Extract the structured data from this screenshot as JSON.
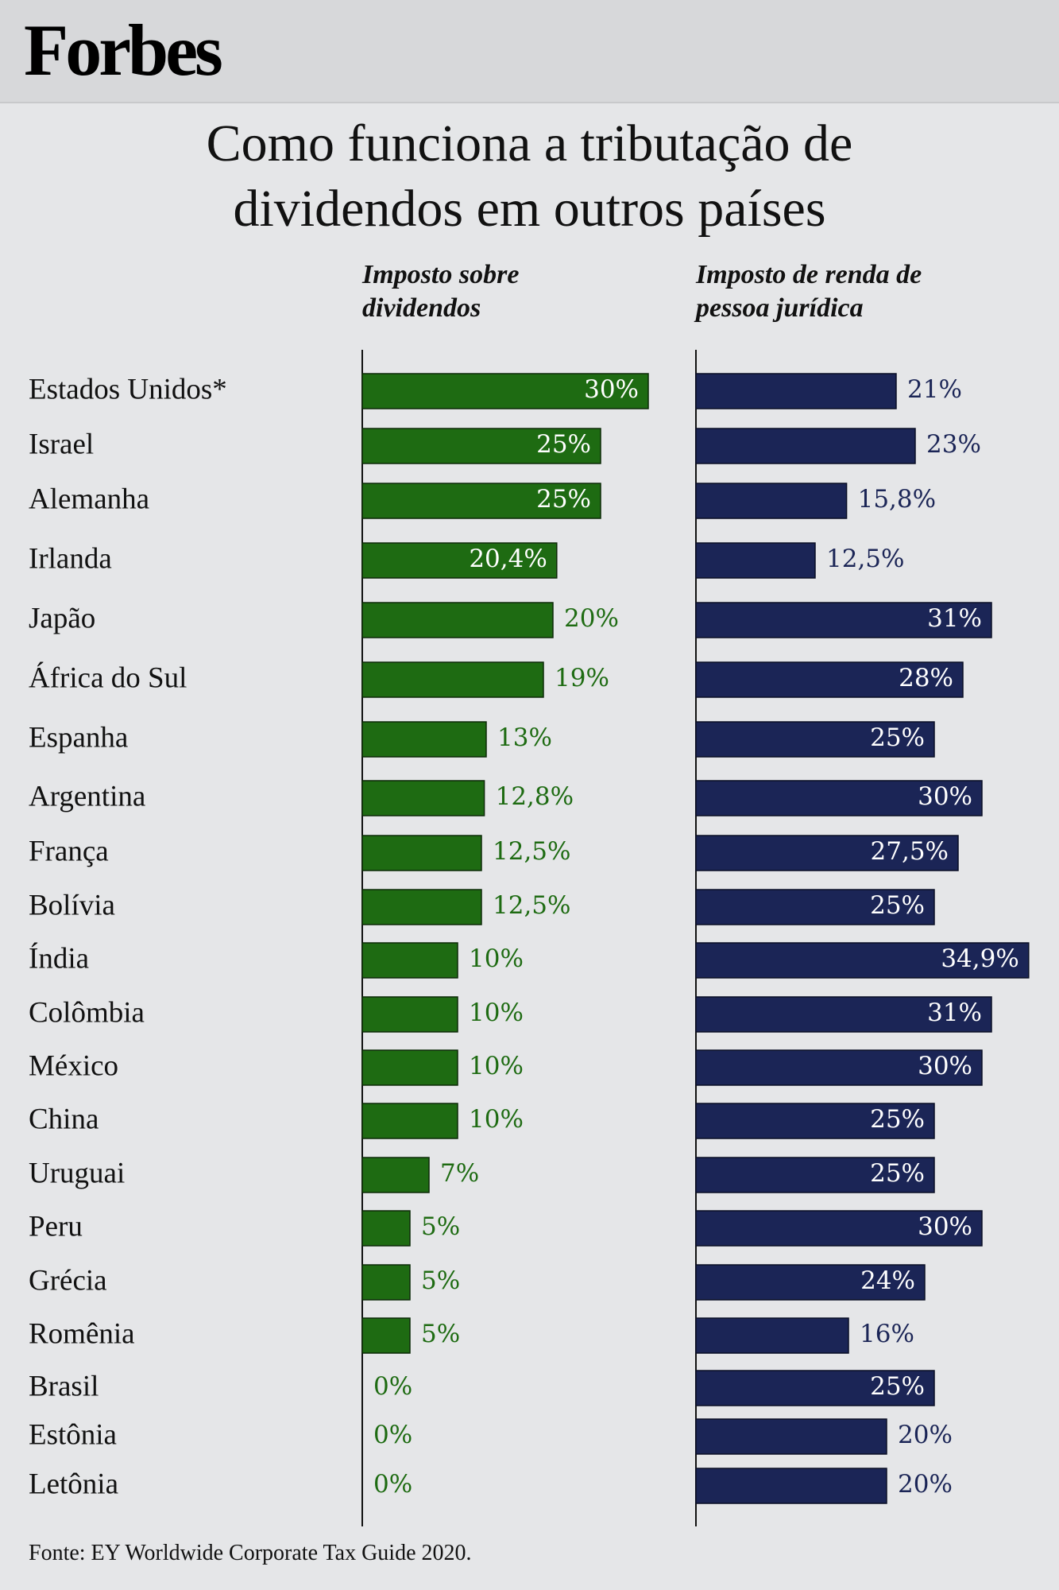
{
  "brand": "Forbes",
  "title_line1": "Como funciona a tributação de",
  "title_line2": "dividendos em outros países",
  "source": "Fonte: EY Worldwide Corporate Tax Guide 2020.",
  "colors": {
    "dividend": "#1e6b12",
    "corporate": "#1b2556",
    "dividend_text": "#1e6b12",
    "corporate_text": "#1b2556"
  },
  "chart_data": {
    "type": "bar",
    "orientation": "horizontal",
    "title": "Como funciona a tributação de dividendos em outros países",
    "categories": [
      "Estados Unidos*",
      "Israel",
      "Alemanha",
      "Irlanda",
      "Japão",
      "África do Sul",
      "Espanha",
      "Argentina",
      "França",
      "Bolívia",
      "Índia",
      "Colômbia",
      "México",
      "China",
      "Uruguai",
      "Peru",
      "Grécia",
      "Romênia",
      "Brasil",
      "Estônia",
      "Letônia"
    ],
    "series": [
      {
        "name": "Imposto sobre dividendos",
        "values": [
          30,
          25,
          25,
          20.4,
          20,
          19,
          13,
          12.8,
          12.5,
          12.5,
          10,
          10,
          10,
          10,
          7,
          5,
          5,
          5,
          0,
          0,
          0
        ],
        "labels": [
          "30%",
          "25%",
          "25%",
          "20,4%",
          "20%",
          "19%",
          "13%",
          "12,8%",
          "12,5%",
          "12,5%",
          "10%",
          "10%",
          "10%",
          "10%",
          "7%",
          "5%",
          "5%",
          "5%",
          "0%",
          "0%",
          "0%"
        ]
      },
      {
        "name": "Imposto de renda de pessoa jurídica",
        "values": [
          21,
          23,
          15.8,
          12.5,
          31,
          28,
          25,
          30,
          27.5,
          25,
          34.9,
          31,
          30,
          25,
          25,
          30,
          24,
          16,
          25,
          20,
          20
        ],
        "labels": [
          "21%",
          "23%",
          "15,8%",
          "12,5%",
          "31%",
          "28%",
          "25%",
          "30%",
          "27,5%",
          "25%",
          "34,9%",
          "31%",
          "30%",
          "25%",
          "25%",
          "30%",
          "24%",
          "16%",
          "25%",
          "20%",
          "20%"
        ]
      }
    ],
    "header_dividend": [
      "Imposto sobre",
      "dividendos"
    ],
    "header_corporate": [
      "Imposto de renda de",
      "pessoa jurídica"
    ]
  }
}
